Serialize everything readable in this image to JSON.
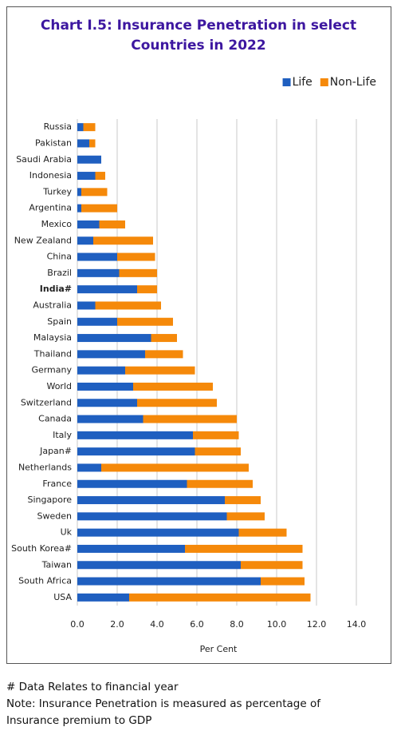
{
  "chart_data": {
    "type": "stacked-barh",
    "title": "Chart I.5: Insurance Penetration in select Countries in 2022",
    "x_label": "Per Cent",
    "categories": [
      "Russia",
      "Pakistan",
      "Saudi Arabia",
      "Indonesia",
      "Turkey",
      "Argentina",
      "Mexico",
      "New Zealand",
      "China",
      "Brazil",
      "India#",
      "Australia",
      "Spain",
      "Malaysia",
      "Thailand",
      "Germany",
      "World",
      "Switzerland",
      "Canada",
      "Italy",
      "Japan#",
      "Netherlands",
      "France",
      "Singapore",
      "Sweden",
      "Uk",
      "South Korea#",
      "Taiwan",
      "South Africa",
      "USA"
    ],
    "highlight": 10,
    "series": [
      {
        "name": "Life",
        "color": "#1f5fc0",
        "values": [
          0.3,
          0.6,
          1.2,
          0.9,
          0.2,
          0.2,
          1.1,
          0.8,
          2.0,
          2.1,
          3.0,
          0.9,
          2.0,
          3.7,
          3.4,
          2.4,
          2.8,
          3.0,
          3.3,
          5.8,
          5.9,
          1.2,
          5.5,
          7.4,
          7.5,
          8.1,
          5.4,
          8.2,
          9.2,
          2.6
        ]
      },
      {
        "name": "Non-Life",
        "color": "#f5890a",
        "values": [
          0.6,
          0.3,
          0.0,
          0.5,
          1.3,
          1.8,
          1.3,
          3.0,
          1.9,
          1.9,
          1.0,
          3.3,
          2.8,
          1.3,
          1.9,
          3.5,
          4.0,
          4.0,
          4.7,
          2.3,
          2.3,
          7.4,
          3.3,
          1.8,
          1.9,
          2.4,
          5.9,
          3.1,
          2.2,
          9.1
        ]
      }
    ],
    "xlim": [
      0,
      14
    ],
    "xticks": [
      {
        "value": 0,
        "label": "0.0"
      },
      {
        "value": 2,
        "label": "2.0"
      },
      {
        "value": 4,
        "label": "4.0"
      },
      {
        "value": 6,
        "label": "6.0"
      },
      {
        "value": 8,
        "label": "8.0"
      },
      {
        "value": 10,
        "label": "10.0"
      },
      {
        "value": 12,
        "label": "12.0"
      },
      {
        "value": 14,
        "label": "14.0"
      }
    ],
    "grid": true,
    "legend": "top-right"
  },
  "notes": [
    "# Data Relates to financial year",
    "Note: Insurance Penetration is measured as percentage of Insurance premium to GDP"
  ]
}
